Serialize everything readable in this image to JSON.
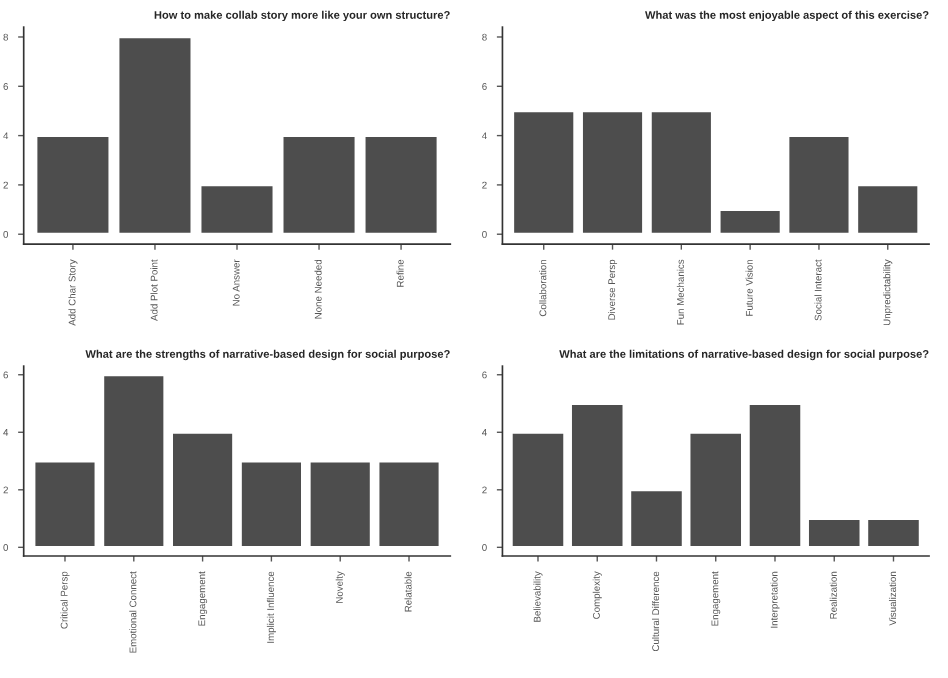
{
  "chart_data": [
    {
      "type": "bar",
      "title": "How to make collab story more like your own structure?",
      "categories": [
        "Add Char Story",
        "Add Plot Point",
        "No Answer",
        "None Needed",
        "Refine"
      ],
      "values": [
        4,
        8,
        2,
        4,
        4
      ],
      "color": "#4d4d4d",
      "ylim": [
        -0.4,
        8.4
      ],
      "yticks": [
        0,
        2,
        4,
        6,
        8
      ],
      "grid": false,
      "legend": false
    },
    {
      "type": "bar",
      "title": "What was the most enjoyable aspect of this exercise?",
      "categories": [
        "Collaboration",
        "Diverse Persp",
        "Fun Mechanics",
        "Future Vision",
        "Social Interact",
        "Unpredictability"
      ],
      "values": [
        5,
        5,
        5,
        1,
        4,
        2
      ],
      "color": "#4d4d4d",
      "ylim": [
        -0.4,
        8.4
      ],
      "yticks": [
        0,
        2,
        4,
        6,
        8
      ],
      "grid": false,
      "legend": false
    },
    {
      "type": "bar",
      "title": "What are the strengths of narrative-based design for social purpose?",
      "categories": [
        "Critical Persp",
        "Emotional Connect",
        "Engagement",
        "Implicit Influence",
        "Novelty",
        "Relatable"
      ],
      "values": [
        3,
        6,
        4,
        3,
        3,
        3
      ],
      "color": "#4d4d4d",
      "ylim": [
        -0.3,
        6.3
      ],
      "yticks": [
        0,
        2,
        4,
        6
      ],
      "grid": false,
      "legend": false
    },
    {
      "type": "bar",
      "title": "What are the limitations of narrative-based design for social purpose?",
      "categories": [
        "Believability",
        "Complexity",
        "Cultural Difference",
        "Engagement",
        "Interpretation",
        "Realization",
        "Visualization"
      ],
      "values": [
        4,
        5,
        2,
        4,
        5,
        1,
        1
      ],
      "color": "#4d4d4d",
      "ylim": [
        -0.3,
        6.3
      ],
      "yticks": [
        0,
        2,
        4,
        6
      ],
      "grid": false,
      "legend": false
    }
  ]
}
